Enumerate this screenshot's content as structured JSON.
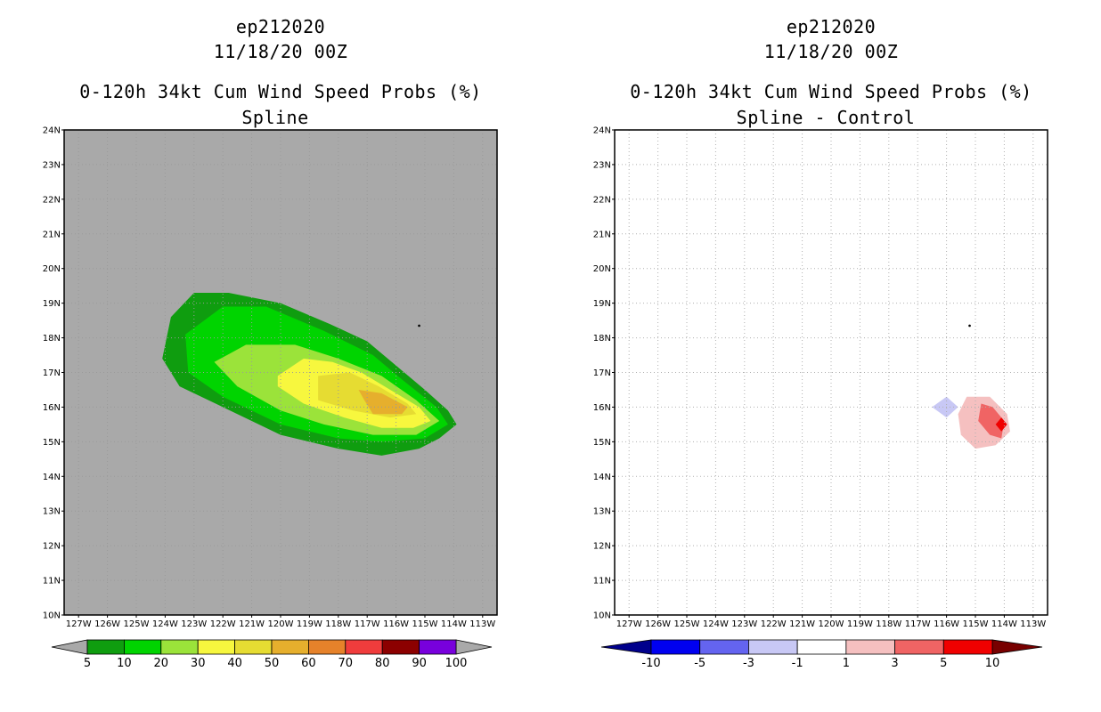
{
  "chart_data": [
    {
      "type": "heatmap",
      "storm_id": "ep212020",
      "datetime": "11/18/20 00Z",
      "title": "0-120h 34kt Cum Wind Speed Probs (%)",
      "subtitle": "Spline",
      "background_color": "#a9a9a9",
      "xlim": [
        -127.5,
        -112.5
      ],
      "ylim": [
        10,
        24
      ],
      "x_tick_labels": [
        "127W",
        "126W",
        "125W",
        "124W",
        "123W",
        "122W",
        "121W",
        "120W",
        "119W",
        "118W",
        "117W",
        "116W",
        "115W",
        "114W",
        "113W"
      ],
      "y_tick_labels": [
        "10N",
        "11N",
        "12N",
        "13N",
        "14N",
        "15N",
        "16N",
        "17N",
        "18N",
        "19N",
        "20N",
        "21N",
        "22N",
        "23N",
        "24N"
      ],
      "colorbar": {
        "labels": [
          "5",
          "10",
          "20",
          "30",
          "40",
          "50",
          "60",
          "70",
          "80",
          "90",
          "100"
        ],
        "colors": [
          "#0f9d0f",
          "#00d400",
          "#9be33a",
          "#f7f73e",
          "#e6dc32",
          "#e6af2d",
          "#e6822a",
          "#f03c3c",
          "#8c0000",
          "#7800dc"
        ],
        "end_color": "#a9a9a9"
      },
      "contours": [
        {
          "level": 5,
          "color": "#0f9d0f",
          "points": [
            [
              -123.8,
              18.6
            ],
            [
              -123,
              19.3
            ],
            [
              -121.8,
              19.3
            ],
            [
              -120,
              19
            ],
            [
              -118.3,
              18.4
            ],
            [
              -117,
              17.9
            ],
            [
              -116,
              17.2
            ],
            [
              -115,
              16.5
            ],
            [
              -114.2,
              15.9
            ],
            [
              -113.9,
              15.5
            ],
            [
              -114.5,
              15.1
            ],
            [
              -115.2,
              14.8
            ],
            [
              -116.5,
              14.6
            ],
            [
              -118,
              14.8
            ],
            [
              -120,
              15.2
            ],
            [
              -122,
              16
            ],
            [
              -123.5,
              16.6
            ],
            [
              -124.1,
              17.4
            ]
          ]
        },
        {
          "level": 10,
          "color": "#00d400",
          "points": [
            [
              -123.3,
              18.1
            ],
            [
              -122,
              18.9
            ],
            [
              -120.5,
              18.9
            ],
            [
              -118.5,
              18.2
            ],
            [
              -116.8,
              17.5
            ],
            [
              -115.8,
              16.8
            ],
            [
              -114.6,
              16
            ],
            [
              -114.2,
              15.5
            ],
            [
              -115,
              15.1
            ],
            [
              -116.5,
              15
            ],
            [
              -118,
              15.1
            ],
            [
              -120,
              15.5
            ],
            [
              -122,
              16.3
            ],
            [
              -123.2,
              17
            ]
          ]
        },
        {
          "level": 20,
          "color": "#9be33a",
          "points": [
            [
              -122.3,
              17.3
            ],
            [
              -121.2,
              17.8
            ],
            [
              -119.5,
              17.8
            ],
            [
              -118,
              17.4
            ],
            [
              -116.5,
              16.9
            ],
            [
              -115.3,
              16.2
            ],
            [
              -114.5,
              15.6
            ],
            [
              -115.3,
              15.2
            ],
            [
              -116.8,
              15.2
            ],
            [
              -118.5,
              15.5
            ],
            [
              -120,
              15.9
            ],
            [
              -121.5,
              16.6
            ]
          ]
        },
        {
          "level": 30,
          "color": "#f7f73e",
          "points": [
            [
              -120.1,
              16.9
            ],
            [
              -119.2,
              17.4
            ],
            [
              -118.2,
              17.3
            ],
            [
              -117.2,
              17
            ],
            [
              -116.2,
              16.5
            ],
            [
              -115.2,
              16
            ],
            [
              -114.8,
              15.6
            ],
            [
              -115.4,
              15.4
            ],
            [
              -116.5,
              15.4
            ],
            [
              -117.8,
              15.7
            ],
            [
              -119.2,
              16.1
            ],
            [
              -120.1,
              16.6
            ]
          ]
        },
        {
          "level": 40,
          "color": "#e6dc32",
          "points": [
            [
              -118.7,
              16.9
            ],
            [
              -117.6,
              17
            ],
            [
              -116.6,
              16.6
            ],
            [
              -115.6,
              16.1
            ],
            [
              -115.3,
              15.8
            ],
            [
              -116.2,
              15.7
            ],
            [
              -117.5,
              15.9
            ],
            [
              -118.7,
              16.2
            ]
          ]
        },
        {
          "level": 50,
          "color": "#e6af2d",
          "points": [
            [
              -117.3,
              16.5
            ],
            [
              -116.5,
              16.4
            ],
            [
              -115.6,
              16
            ],
            [
              -115.8,
              15.8
            ],
            [
              -116.8,
              15.8
            ],
            [
              -117.1,
              16.2
            ]
          ]
        }
      ],
      "markers": [
        {
          "lon": -115.2,
          "lat": 18.35
        }
      ]
    },
    {
      "type": "heatmap",
      "storm_id": "ep212020",
      "datetime": "11/18/20 00Z",
      "title": "0-120h 34kt Cum Wind Speed Probs (%)",
      "subtitle": "Spline - Control",
      "background_color": "#ffffff",
      "xlim": [
        -127.5,
        -112.5
      ],
      "ylim": [
        10,
        24
      ],
      "x_tick_labels": [
        "127W",
        "126W",
        "125W",
        "124W",
        "123W",
        "122W",
        "121W",
        "120W",
        "119W",
        "118W",
        "117W",
        "116W",
        "115W",
        "114W",
        "113W"
      ],
      "y_tick_labels": [
        "10N",
        "11N",
        "12N",
        "13N",
        "14N",
        "15N",
        "16N",
        "17N",
        "18N",
        "19N",
        "20N",
        "21N",
        "22N",
        "23N",
        "24N"
      ],
      "grid": true,
      "colorbar": {
        "labels": [
          "-10",
          "-5",
          "-3",
          "-1",
          "1",
          "3",
          "5",
          "10"
        ],
        "colors": [
          "#00008c",
          "#0000f0",
          "#6464f0",
          "#c8c8f5",
          "#ffffff",
          "#f5c0c0",
          "#f06464",
          "#f00000",
          "#780000"
        ]
      },
      "contours": [
        {
          "level": -1,
          "color": "#c8c8f5",
          "points": [
            [
              -116,
              16.3
            ],
            [
              -115.6,
              16
            ],
            [
              -116,
              15.7
            ],
            [
              -116.5,
              16
            ]
          ]
        },
        {
          "level": 1,
          "color": "#f5c0c0",
          "points": [
            [
              -115.3,
              16.3
            ],
            [
              -114.5,
              16.3
            ],
            [
              -113.9,
              15.8
            ],
            [
              -113.8,
              15.3
            ],
            [
              -114.3,
              14.9
            ],
            [
              -115,
              14.8
            ],
            [
              -115.5,
              15.2
            ],
            [
              -115.6,
              15.8
            ]
          ]
        },
        {
          "level": 3,
          "color": "#f06464",
          "points": [
            [
              -114.8,
              16.1
            ],
            [
              -114.4,
              16
            ],
            [
              -114,
              15.6
            ],
            [
              -114.1,
              15.1
            ],
            [
              -114.5,
              15.2
            ],
            [
              -114.9,
              15.6
            ]
          ]
        },
        {
          "level": 5,
          "color": "#f00000",
          "points": [
            [
              -114.1,
              15.7
            ],
            [
              -113.9,
              15.5
            ],
            [
              -114.1,
              15.3
            ],
            [
              -114.3,
              15.5
            ]
          ]
        }
      ],
      "markers": [
        {
          "lon": -115.2,
          "lat": 18.35
        }
      ]
    }
  ]
}
